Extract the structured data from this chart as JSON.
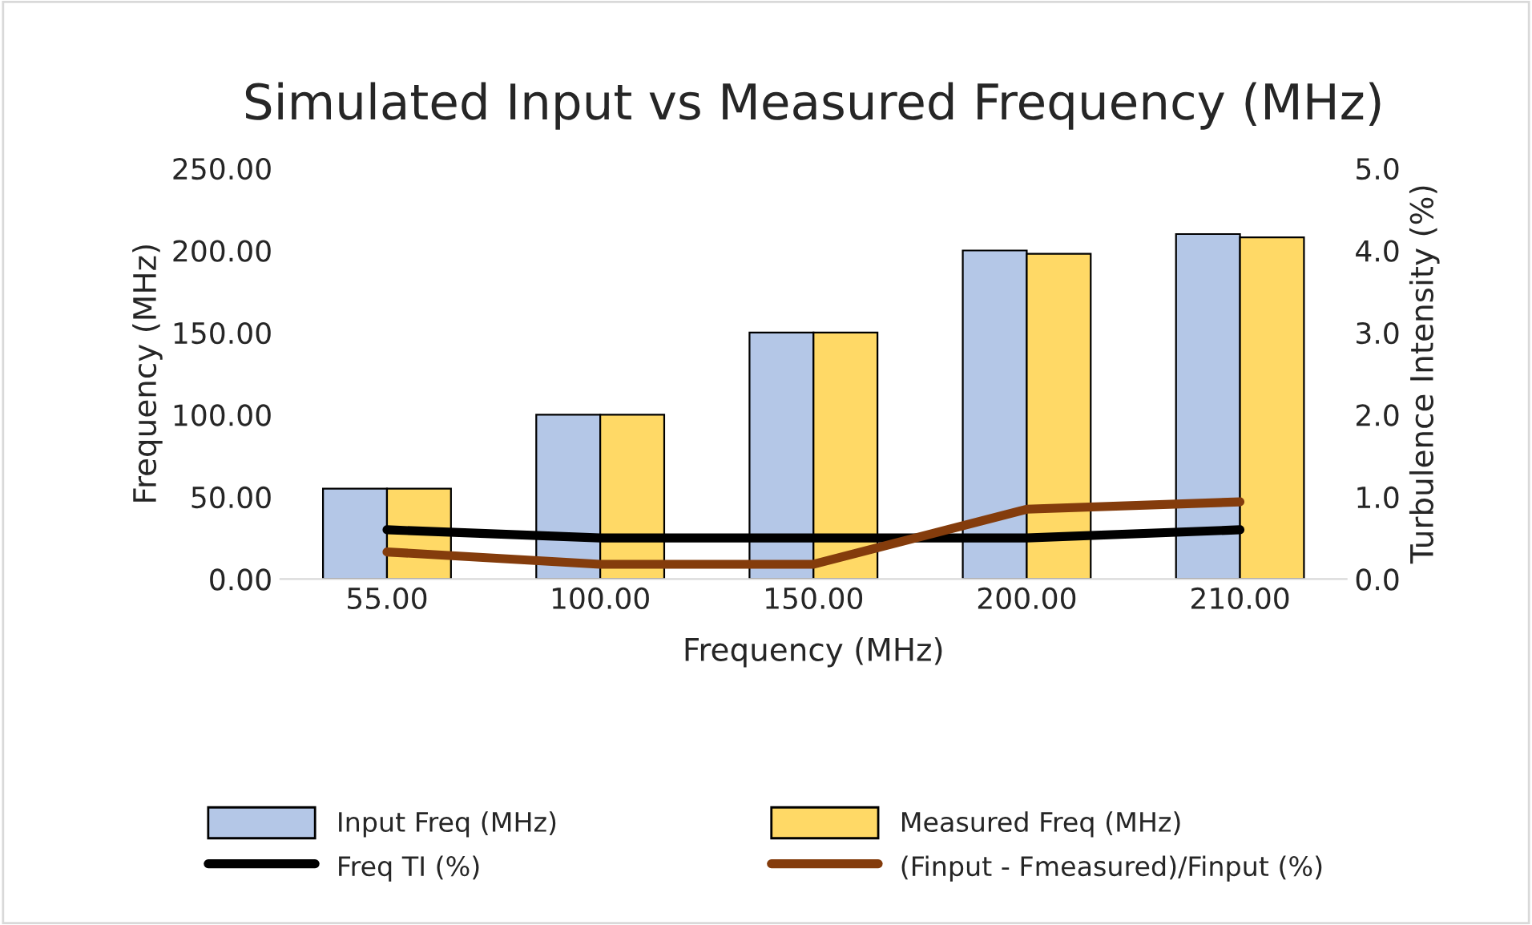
{
  "chart_data": {
    "type": "bar",
    "title": "Simulated Input vs Measured Frequency (MHz)",
    "xlabel": "Frequency (MHz)",
    "ylabel": "Frequency (MHz)",
    "y2label": "Turbulence Intensity (%)",
    "categories": [
      "55.00",
      "100.00",
      "150.00",
      "200.00",
      "210.00"
    ],
    "series": [
      {
        "name": "Input Freq (MHz)",
        "color": "#b4c7e7",
        "values": [
          55,
          100,
          150,
          200,
          210
        ]
      },
      {
        "name": "Measured Freq (MHz)",
        "color": "#ffd966",
        "values": [
          55,
          100,
          150,
          198,
          208
        ]
      },
      {
        "name": "Freq TI (%)",
        "type": "line",
        "axis": "y2",
        "color": "#000000",
        "values": [
          0.6,
          0.5,
          0.5,
          0.5,
          0.6
        ]
      },
      {
        "name": "(Finput - Fmeasured)/Finput (%)",
        "type": "line",
        "axis": "y2",
        "color": "#843c0c",
        "values": [
          0.33,
          0.18,
          0.18,
          0.85,
          0.94
        ]
      }
    ],
    "ylim": [
      0,
      250
    ],
    "yticks": [
      {
        "value": 0,
        "label": "0.00"
      },
      {
        "value": 50,
        "label": "50.00"
      },
      {
        "value": 100,
        "label": "100.00"
      },
      {
        "value": 150,
        "label": "150.00"
      },
      {
        "value": 200,
        "label": "200.00"
      },
      {
        "value": 250,
        "label": "250.00"
      }
    ],
    "y2lim": [
      0,
      5
    ],
    "y2ticks": [
      {
        "value": 0,
        "label": "0.0"
      },
      {
        "value": 1,
        "label": "1.0"
      },
      {
        "value": 2,
        "label": "2.0"
      },
      {
        "value": 3,
        "label": "3.0"
      },
      {
        "value": 4,
        "label": "4.0"
      },
      {
        "value": 5,
        "label": "5.0"
      }
    ],
    "grid": false,
    "legend": "bottom"
  }
}
